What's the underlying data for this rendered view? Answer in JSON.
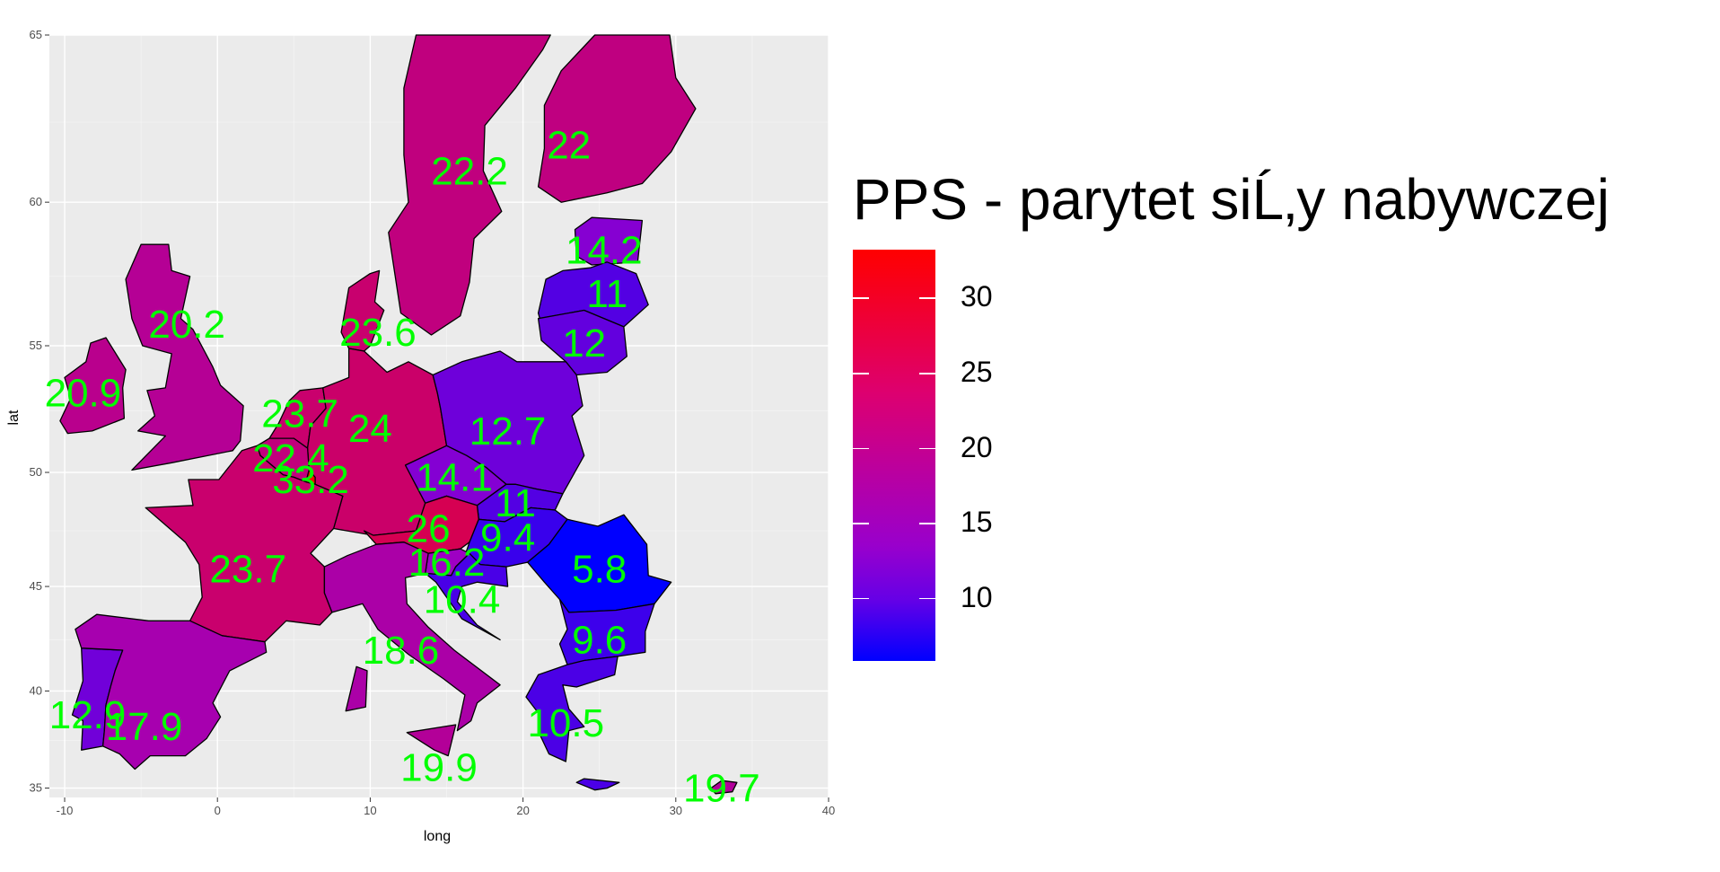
{
  "chart_data": {
    "type": "heatmap",
    "xlabel": "long",
    "ylabel": "lat",
    "xlim": [
      -11,
      40
    ],
    "ylim": [
      34.5,
      65
    ],
    "x_ticks": [
      -10,
      0,
      10,
      20,
      30,
      40
    ],
    "y_ticks": [
      35,
      40,
      45,
      50,
      55,
      60,
      65
    ],
    "grid": true,
    "legend": {
      "title": "PPS - parytet siĹ‚y nabywczej",
      "ticks": [
        10,
        15,
        20,
        25,
        30
      ],
      "range": [
        5.8,
        33.2
      ],
      "low_color": "#0000ff",
      "mid_color": "#9900cc",
      "high_color": "#ff0000"
    },
    "regions": [
      {
        "value": 22.2,
        "lon": 16.5,
        "lat": 61.0
      },
      {
        "value": 22,
        "lon": 23.0,
        "lat": 61.8
      },
      {
        "value": 14.2,
        "lon": 25.3,
        "lat": 58.4
      },
      {
        "value": 11,
        "lon": 25.5,
        "lat": 56.9
      },
      {
        "value": 12,
        "lon": 24.0,
        "lat": 55.1
      },
      {
        "value": 20.2,
        "lon": -2.0,
        "lat": 55.8
      },
      {
        "value": 23.6,
        "lon": 10.5,
        "lat": 55.5
      },
      {
        "value": 20.9,
        "lon": -8.8,
        "lat": 53.2
      },
      {
        "value": 23.7,
        "lon": 5.4,
        "lat": 52.4
      },
      {
        "value": 24,
        "lon": 10.0,
        "lat": 51.8
      },
      {
        "value": 12.7,
        "lon": 19.0,
        "lat": 51.7
      },
      {
        "value": 22.4,
        "lon": 4.8,
        "lat": 50.6
      },
      {
        "value": 33.2,
        "lon": 6.1,
        "lat": 49.7
      },
      {
        "value": 14.1,
        "lon": 15.5,
        "lat": 49.8
      },
      {
        "value": 11,
        "lon": 19.5,
        "lat": 48.7
      },
      {
        "value": 26,
        "lon": 13.8,
        "lat": 47.6
      },
      {
        "value": 9.4,
        "lon": 19.0,
        "lat": 47.2
      },
      {
        "value": 16.2,
        "lon": 15.0,
        "lat": 46.1
      },
      {
        "value": 5.8,
        "lon": 25.0,
        "lat": 45.8
      },
      {
        "value": 23.7,
        "lon": 2.0,
        "lat": 45.8
      },
      {
        "value": 10.4,
        "lon": 16.0,
        "lat": 44.4
      },
      {
        "value": 9.6,
        "lon": 25.0,
        "lat": 42.5
      },
      {
        "value": 18.6,
        "lon": 12.0,
        "lat": 42.0
      },
      {
        "value": 12.9,
        "lon": -8.5,
        "lat": 38.8
      },
      {
        "value": 17.9,
        "lon": -4.8,
        "lat": 38.2
      },
      {
        "value": 10.5,
        "lon": 22.8,
        "lat": 38.4
      },
      {
        "value": 19.9,
        "lon": 14.5,
        "lat": 36.1
      },
      {
        "value": 19.7,
        "lon": 33.0,
        "lat": 35.0
      }
    ]
  }
}
